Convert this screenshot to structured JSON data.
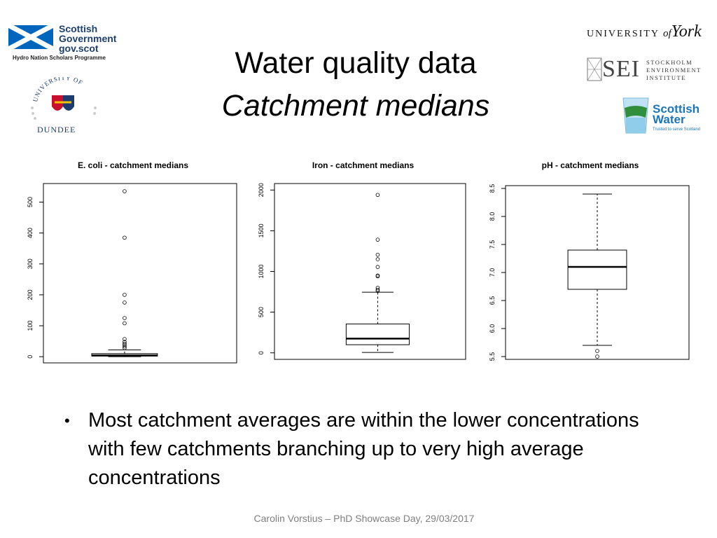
{
  "slide": {
    "title_line1": "Water quality data",
    "title_line2": "Catchment medians",
    "bullet": "Most catchment averages are within the lower concentrations with few catchments branching up to very high average concentrations",
    "footer": "Carolin Vorstius – PhD Showcase Day, 29/03/2017"
  },
  "logos": {
    "scottish_government": {
      "line1": "Scottish",
      "line2": "Government",
      "line3": "gov.scot",
      "sub": "Hydro Nation Scholars Programme"
    },
    "dundee": {
      "arc": "UNIVERSITY OF",
      "name": "DUNDEE"
    },
    "york": {
      "text": "UNIVERSITY",
      "of": "of",
      "york": "York"
    },
    "sei": {
      "big": "SEI",
      "line1": "STOCKHOLM",
      "line2": "ENVIRONMENT",
      "line3": "INSTITUTE"
    },
    "scottish_water": {
      "line1": "Scottish",
      "line2": "Water",
      "tag": "Trusted to serve Scotland"
    }
  },
  "colors": {
    "text": "#000000",
    "footer": "#7f7f7f",
    "sg_blue": "#0065bd",
    "sw_blue": "#1b75bb"
  },
  "chart_data": [
    {
      "type": "box",
      "title": "E. coli - catchment medians",
      "xlabel": "",
      "ylabel": "",
      "ylim": [
        -20,
        560
      ],
      "yticks": [
        0,
        100,
        200,
        300,
        400,
        500
      ],
      "box": {
        "whisker_low": 0,
        "q1": 2,
        "median": 4,
        "q3": 10,
        "whisker_high": 22
      },
      "outliers": [
        535,
        385,
        200,
        175,
        125,
        108,
        57,
        48,
        42,
        38,
        33,
        28
      ]
    },
    {
      "type": "box",
      "title": "Iron - catchment medians",
      "xlabel": "",
      "ylabel": "",
      "ylim": [
        -80,
        2080
      ],
      "yticks": [
        0,
        500,
        1000,
        1500,
        2000
      ],
      "box": {
        "whisker_low": 5,
        "q1": 100,
        "median": 175,
        "q3": 355,
        "whisker_high": 745
      },
      "outliers": [
        1940,
        1390,
        1205,
        1150,
        1055,
        950,
        940,
        800,
        775,
        760
      ]
    },
    {
      "type": "box",
      "title": "pH - catchment medians",
      "xlabel": "",
      "ylabel": "",
      "ylim": [
        5.45,
        8.55
      ],
      "yticks": [
        "5.5",
        "6.0",
        "6.5",
        "7.0",
        "7.5",
        "8.0",
        "8.5"
      ],
      "box": {
        "whisker_low": 5.7,
        "q1": 6.7,
        "median": 7.1,
        "q3": 7.4,
        "whisker_high": 8.4
      },
      "outliers": [
        5.6,
        5.5
      ]
    }
  ]
}
